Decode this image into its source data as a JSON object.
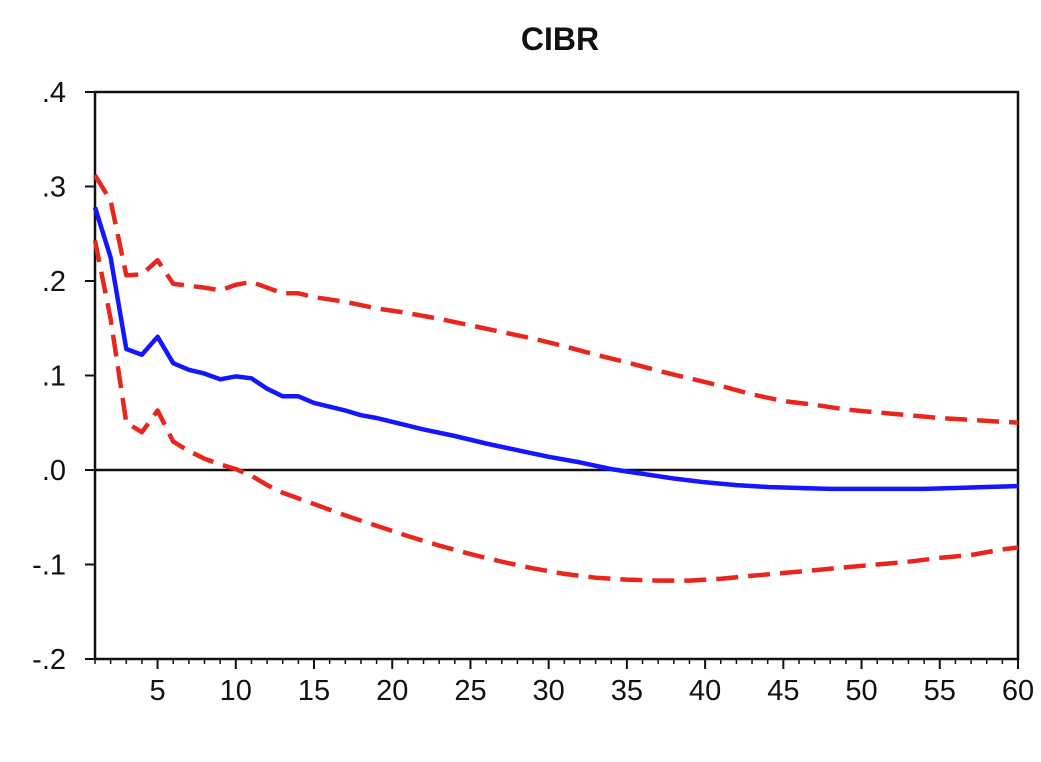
{
  "chart_data": {
    "type": "line",
    "title": "CIBR",
    "xlabel": "",
    "ylabel": "",
    "xlim": [
      1,
      60
    ],
    "ylim": [
      -0.2,
      0.4
    ],
    "x_ticks": [
      5,
      10,
      15,
      20,
      25,
      30,
      35,
      40,
      45,
      50,
      55,
      60
    ],
    "x_tick_labels": [
      "5",
      "10",
      "15",
      "20",
      "25",
      "30",
      "35",
      "40",
      "45",
      "50",
      "55",
      "60"
    ],
    "y_ticks": [
      0.4,
      0.3,
      0.2,
      0.1,
      0.0,
      -0.1,
      -0.2
    ],
    "y_tick_labels": [
      ".4",
      ".3",
      ".2",
      ".1",
      ".0",
      "-.1",
      "-.2"
    ],
    "grid": false,
    "zero_line": true,
    "series": [
      {
        "style": "solid",
        "color": "#1515ff",
        "points": [
          [
            1,
            0.278
          ],
          [
            2,
            0.225
          ],
          [
            3,
            0.128
          ],
          [
            4,
            0.122
          ],
          [
            5,
            0.141
          ],
          [
            6,
            0.113
          ],
          [
            7,
            0.106
          ],
          [
            8,
            0.102
          ],
          [
            9,
            0.096
          ],
          [
            10,
            0.099
          ],
          [
            11,
            0.097
          ],
          [
            12,
            0.086
          ],
          [
            13,
            0.078
          ],
          [
            14,
            0.078
          ],
          [
            15,
            0.071
          ],
          [
            16,
            0.067
          ],
          [
            17,
            0.063
          ],
          [
            18,
            0.058
          ],
          [
            19,
            0.055
          ],
          [
            20,
            0.051
          ],
          [
            22,
            0.043
          ],
          [
            24,
            0.036
          ],
          [
            26,
            0.028
          ],
          [
            28,
            0.021
          ],
          [
            30,
            0.014
          ],
          [
            32,
            0.008
          ],
          [
            34,
            0.001
          ],
          [
            36,
            -0.004
          ],
          [
            38,
            -0.009
          ],
          [
            40,
            -0.013
          ],
          [
            42,
            -0.016
          ],
          [
            44,
            -0.018
          ],
          [
            46,
            -0.019
          ],
          [
            48,
            -0.02
          ],
          [
            50,
            -0.02
          ],
          [
            52,
            -0.02
          ],
          [
            54,
            -0.02
          ],
          [
            56,
            -0.019
          ],
          [
            58,
            -0.018
          ],
          [
            60,
            -0.017
          ]
        ]
      },
      {
        "style": "dashed",
        "color": "#e8261d",
        "points": [
          [
            1,
            0.312
          ],
          [
            2,
            0.285
          ],
          [
            3,
            0.206
          ],
          [
            4,
            0.207
          ],
          [
            5,
            0.222
          ],
          [
            6,
            0.197
          ],
          [
            7,
            0.195
          ],
          [
            8,
            0.193
          ],
          [
            9,
            0.19
          ],
          [
            10,
            0.196
          ],
          [
            11,
            0.199
          ],
          [
            12,
            0.193
          ],
          [
            13,
            0.187
          ],
          [
            14,
            0.187
          ],
          [
            15,
            0.183
          ],
          [
            17,
            0.178
          ],
          [
            19,
            0.171
          ],
          [
            21,
            0.166
          ],
          [
            23,
            0.16
          ],
          [
            25,
            0.153
          ],
          [
            27,
            0.146
          ],
          [
            29,
            0.139
          ],
          [
            31,
            0.131
          ],
          [
            33,
            0.122
          ],
          [
            35,
            0.114
          ],
          [
            37,
            0.105
          ],
          [
            39,
            0.097
          ],
          [
            41,
            0.089
          ],
          [
            43,
            0.08
          ],
          [
            45,
            0.073
          ],
          [
            47,
            0.069
          ],
          [
            49,
            0.064
          ],
          [
            51,
            0.061
          ],
          [
            53,
            0.058
          ],
          [
            55,
            0.055
          ],
          [
            57,
            0.053
          ],
          [
            59,
            0.051
          ],
          [
            60,
            0.05
          ]
        ]
      },
      {
        "style": "dashed",
        "color": "#e8261d",
        "points": [
          [
            1,
            0.243
          ],
          [
            2,
            0.16
          ],
          [
            3,
            0.05
          ],
          [
            4,
            0.04
          ],
          [
            5,
            0.063
          ],
          [
            6,
            0.03
          ],
          [
            7,
            0.02
          ],
          [
            8,
            0.012
          ],
          [
            9,
            0.006
          ],
          [
            10,
            0.001
          ],
          [
            11,
            -0.006
          ],
          [
            12,
            -0.016
          ],
          [
            13,
            -0.024
          ],
          [
            14,
            -0.03
          ],
          [
            15,
            -0.036
          ],
          [
            17,
            -0.048
          ],
          [
            19,
            -0.059
          ],
          [
            21,
            -0.07
          ],
          [
            23,
            -0.08
          ],
          [
            25,
            -0.089
          ],
          [
            27,
            -0.097
          ],
          [
            29,
            -0.104
          ],
          [
            31,
            -0.11
          ],
          [
            33,
            -0.114
          ],
          [
            35,
            -0.116
          ],
          [
            37,
            -0.117
          ],
          [
            39,
            -0.117
          ],
          [
            41,
            -0.115
          ],
          [
            43,
            -0.112
          ],
          [
            45,
            -0.109
          ],
          [
            47,
            -0.106
          ],
          [
            49,
            -0.103
          ],
          [
            51,
            -0.1
          ],
          [
            53,
            -0.097
          ],
          [
            55,
            -0.093
          ],
          [
            57,
            -0.09
          ],
          [
            59,
            -0.084
          ],
          [
            60,
            -0.082
          ]
        ]
      }
    ]
  }
}
